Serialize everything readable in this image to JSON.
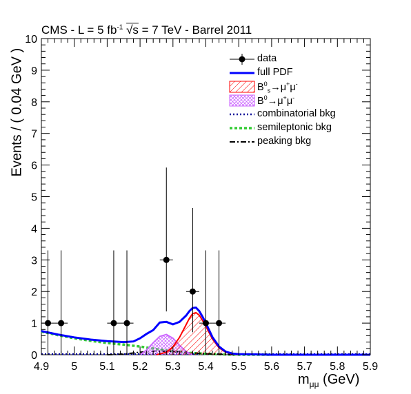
{
  "chart_data": {
    "type": "line",
    "title": "CMS - L = 5 fb⁻¹ √s = 7 TeV - Barrel 2011",
    "title_parts": {
      "pre": "CMS - L = 5 fb",
      "sup": "-1",
      "sqrt": "√s",
      "post": " = 7 TeV - Barrel 2011"
    },
    "xlabel": "m",
    "xlabel_sub": "μμ",
    "xlabel_unit": " (GeV)",
    "ylabel": "Events / ( 0.04 GeV )",
    "xlim": [
      4.9,
      5.9
    ],
    "ylim": [
      0,
      10
    ],
    "x_ticks": [
      "4.9",
      "5",
      "5.1",
      "5.2",
      "5.3",
      "5.4",
      "5.5",
      "5.6",
      "5.7",
      "5.8",
      "5.9"
    ],
    "y_ticks": [
      "0",
      "1",
      "2",
      "3",
      "4",
      "5",
      "6",
      "7",
      "8",
      "9",
      "10"
    ],
    "data": {
      "name": "data",
      "points": [
        {
          "x": 4.92,
          "y": 1,
          "err_low": 1,
          "err_high": 2.3
        },
        {
          "x": 4.96,
          "y": 1,
          "err_low": 1,
          "err_high": 2.3
        },
        {
          "x": 5.12,
          "y": 1,
          "err_low": 1,
          "err_high": 2.3
        },
        {
          "x": 5.16,
          "y": 1,
          "err_low": 1,
          "err_high": 2.3
        },
        {
          "x": 5.28,
          "y": 3,
          "err_low": 1.63,
          "err_high": 2.92
        },
        {
          "x": 5.36,
          "y": 2,
          "err_low": 1.29,
          "err_high": 2.64
        },
        {
          "x": 5.4,
          "y": 1,
          "err_low": 1,
          "err_high": 2.3
        },
        {
          "x": 5.44,
          "y": 1,
          "err_low": 1,
          "err_high": 2.3
        }
      ]
    },
    "series": [
      {
        "name": "full PDF",
        "color": "#0000ff",
        "x": [
          4.9,
          4.95,
          5.0,
          5.05,
          5.1,
          5.15,
          5.18,
          5.2,
          5.22,
          5.24,
          5.26,
          5.28,
          5.3,
          5.32,
          5.34,
          5.35,
          5.36,
          5.37,
          5.38,
          5.39,
          5.4,
          5.42,
          5.44,
          5.46,
          5.48,
          5.5,
          5.55,
          5.6,
          5.7,
          5.8,
          5.9
        ],
        "y": [
          0.75,
          0.64,
          0.55,
          0.48,
          0.43,
          0.4,
          0.42,
          0.52,
          0.66,
          0.78,
          1.02,
          1.04,
          0.96,
          1.04,
          1.24,
          1.38,
          1.48,
          1.49,
          1.38,
          1.2,
          1.0,
          0.56,
          0.26,
          0.1,
          0.04,
          0.02,
          0.01,
          0.0,
          0.0,
          0.0,
          0.0
        ]
      },
      {
        "name": "B_s^0→μ⁺μ⁻",
        "color": "#ff0000",
        "x": [
          5.25,
          5.28,
          5.3,
          5.32,
          5.34,
          5.35,
          5.36,
          5.37,
          5.38,
          5.39,
          5.4,
          5.42,
          5.44,
          5.46,
          5.48,
          5.5
        ],
        "y": [
          0.0,
          0.08,
          0.25,
          0.55,
          0.95,
          1.15,
          1.3,
          1.33,
          1.25,
          1.08,
          0.9,
          0.5,
          0.22,
          0.08,
          0.03,
          0.0
        ]
      },
      {
        "name": "B^0→μ⁺μ⁻",
        "color": "#cc66ff",
        "x": [
          5.2,
          5.22,
          5.24,
          5.26,
          5.28,
          5.3,
          5.32,
          5.34,
          5.36
        ],
        "y": [
          0.0,
          0.15,
          0.38,
          0.58,
          0.64,
          0.52,
          0.3,
          0.1,
          0.0
        ]
      },
      {
        "name": "combinatorial bkg",
        "color": "#000099",
        "x": [
          4.9,
          5.9
        ],
        "y": [
          0.02,
          0.02
        ]
      },
      {
        "name": "semileptonic bkg",
        "color": "#33cc33",
        "x": [
          4.9,
          4.95,
          5.0,
          5.05,
          5.1,
          5.15,
          5.2,
          5.25,
          5.3,
          5.35,
          5.4,
          5.45,
          5.5,
          5.6
        ],
        "y": [
          0.73,
          0.62,
          0.52,
          0.44,
          0.37,
          0.32,
          0.26,
          0.18,
          0.11,
          0.06,
          0.03,
          0.01,
          0.0,
          0.0
        ]
      },
      {
        "name": "peaking bkg",
        "color": "#000000",
        "x": [
          5.1,
          5.15,
          5.2,
          5.25,
          5.3,
          5.35,
          5.4,
          5.45,
          5.5
        ],
        "y": [
          0.0,
          0.02,
          0.08,
          0.12,
          0.1,
          0.06,
          0.03,
          0.01,
          0.0
        ]
      }
    ],
    "legend": [
      {
        "label": "data"
      },
      {
        "label": "full PDF"
      },
      {
        "label_main": "B",
        "label_sup": "0",
        "label_sub": "s",
        "label_rest": "→μ",
        "label_sup2": "+",
        "label_rest2": "μ",
        "label_sup3": "-"
      },
      {
        "label_main": "B",
        "label_sup": "0",
        "label_sub": "",
        "label_rest": "→μ",
        "label_sup2": "+",
        "label_rest2": "μ",
        "label_sup3": "-"
      },
      {
        "label": "combinatorial bkg"
      },
      {
        "label": "semileptonic bkg"
      },
      {
        "label": "peaking bkg"
      }
    ],
    "legend_position": "top-right"
  }
}
